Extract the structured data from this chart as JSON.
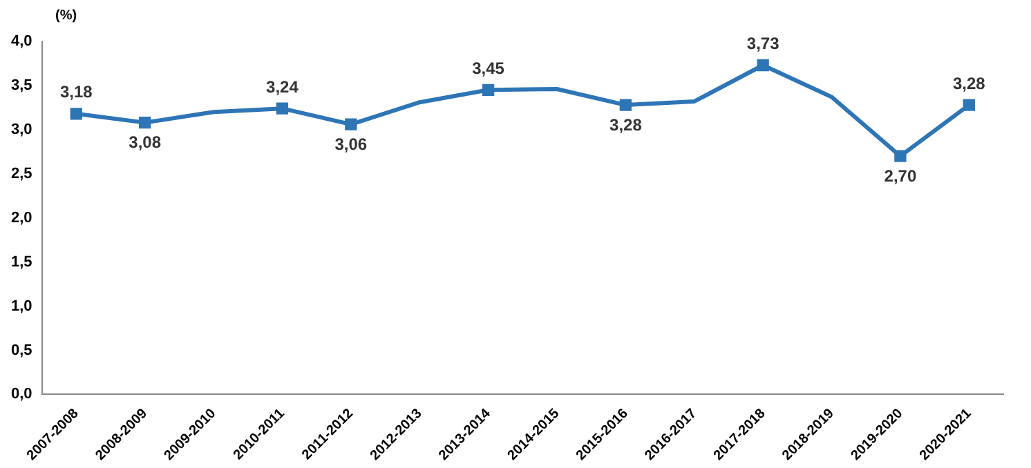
{
  "chart_data": {
    "type": "line",
    "ylabel": "(%)",
    "categories": [
      "2007-2008",
      "2008-2009",
      "2009-2010",
      "2010-2011",
      "2011-2012",
      "2012-2013",
      "2013-2014",
      "2014-2015",
      "2015-2016",
      "2016-2017",
      "2017-2018",
      "2018-2019",
      "2019-2020",
      "2020-2021"
    ],
    "series": [
      {
        "color": "#2e75b6",
        "values": [
          3.18,
          3.08,
          3.2,
          3.24,
          3.06,
          3.31,
          3.45,
          3.46,
          3.28,
          3.32,
          3.73,
          3.37,
          2.7,
          3.28
        ],
        "value_labels": [
          "3,18",
          "3,08",
          null,
          "3,24",
          "3,06",
          null,
          "3,45",
          null,
          "3,28",
          null,
          "3,73",
          null,
          "2,70",
          "3,28"
        ]
      }
    ],
    "ylim": [
      0,
      4
    ],
    "yticks": [
      {
        "value": 0,
        "label": "0,0"
      },
      {
        "value": 0.5,
        "label": "0,5"
      },
      {
        "value": 1,
        "label": "1,0"
      },
      {
        "value": 1.5,
        "label": "1,5"
      },
      {
        "value": 2,
        "label": "2,0"
      },
      {
        "value": 2.5,
        "label": "2,5"
      },
      {
        "value": 3,
        "label": "3,0"
      },
      {
        "value": 3.5,
        "label": "3,5"
      },
      {
        "value": 4,
        "label": "4,0"
      }
    ],
    "grid": false,
    "legend": false,
    "marker": "square",
    "line_style": "solid"
  }
}
